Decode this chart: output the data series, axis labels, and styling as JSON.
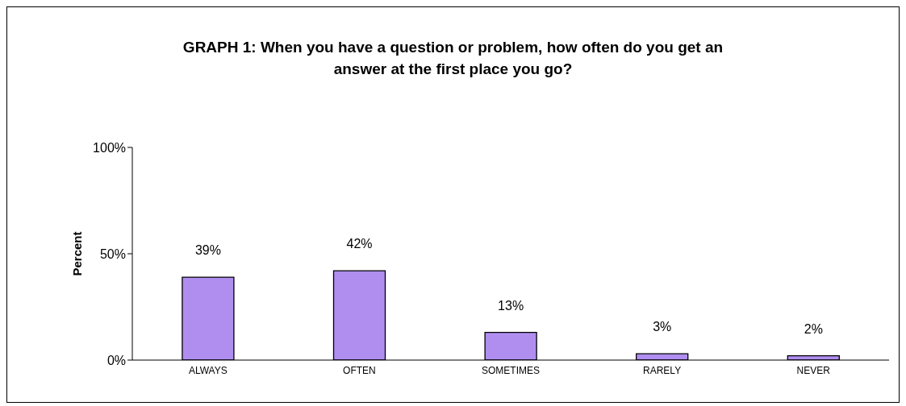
{
  "chart_data": {
    "type": "bar",
    "title": "GRAPH 1: When you have a question or problem, how often do you get an answer at the first place you go?",
    "ylabel": "Percent",
    "categories": [
      "ALWAYS",
      "OFTEN",
      "SOMETIMES",
      "RARELY",
      "NEVER"
    ],
    "values": [
      39,
      42,
      13,
      3,
      2
    ],
    "value_labels": [
      "39%",
      "42%",
      "13%",
      "3%",
      "2%"
    ],
    "color": "#b08ef0",
    "ylim": [
      0,
      100
    ],
    "yticks": [
      {
        "value": 0,
        "label": "0%"
      },
      {
        "value": 50,
        "label": "50%"
      },
      {
        "value": 100,
        "label": "100%"
      }
    ],
    "grid": false,
    "legend": false
  }
}
